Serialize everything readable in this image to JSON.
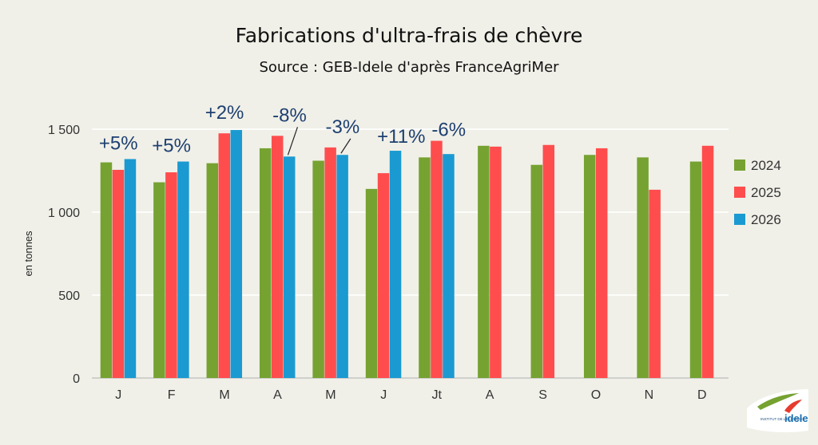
{
  "chart_data": {
    "type": "bar",
    "title": "Fabrications d'ultra-frais de chèvre",
    "subtitle": "Source : GEB-Idele d'après FranceAgriMer",
    "ylabel": "en tonnes",
    "xlabel": "",
    "ylim": [
      0,
      1500
    ],
    "yticks": [
      0,
      500,
      1000,
      1500
    ],
    "ytick_labels": [
      "0",
      "500",
      "1 000",
      "1 500"
    ],
    "grid": true,
    "legend_position": "right",
    "categories": [
      "J",
      "F",
      "M",
      "A",
      "M",
      "J",
      "Jt",
      "A",
      "S",
      "O",
      "N",
      "D"
    ],
    "series": [
      {
        "name": "2024",
        "color": "#76a232",
        "values": [
          1300,
          1180,
          1295,
          1385,
          1310,
          1140,
          1330,
          1400,
          1285,
          1345,
          1330,
          1305
        ]
      },
      {
        "name": "2025",
        "color": "#ff4d4d",
        "values": [
          1255,
          1240,
          1475,
          1460,
          1390,
          1235,
          1430,
          1395,
          1405,
          1385,
          1135,
          1400
        ]
      },
      {
        "name": "2026",
        "color": "#1a9ad1",
        "values": [
          1320,
          1305,
          1495,
          1335,
          1345,
          1370,
          1350,
          null,
          null,
          null,
          null,
          null
        ]
      }
    ],
    "annotations": [
      "+5%",
      "+5%",
      "+2%",
      "-8%",
      "-3%",
      "+11%",
      "-6%",
      null,
      null,
      null,
      null,
      null
    ]
  },
  "logo": {
    "text_main": "idele",
    "text_small": "INSTITUT DE L'ÉLEVAGE"
  }
}
